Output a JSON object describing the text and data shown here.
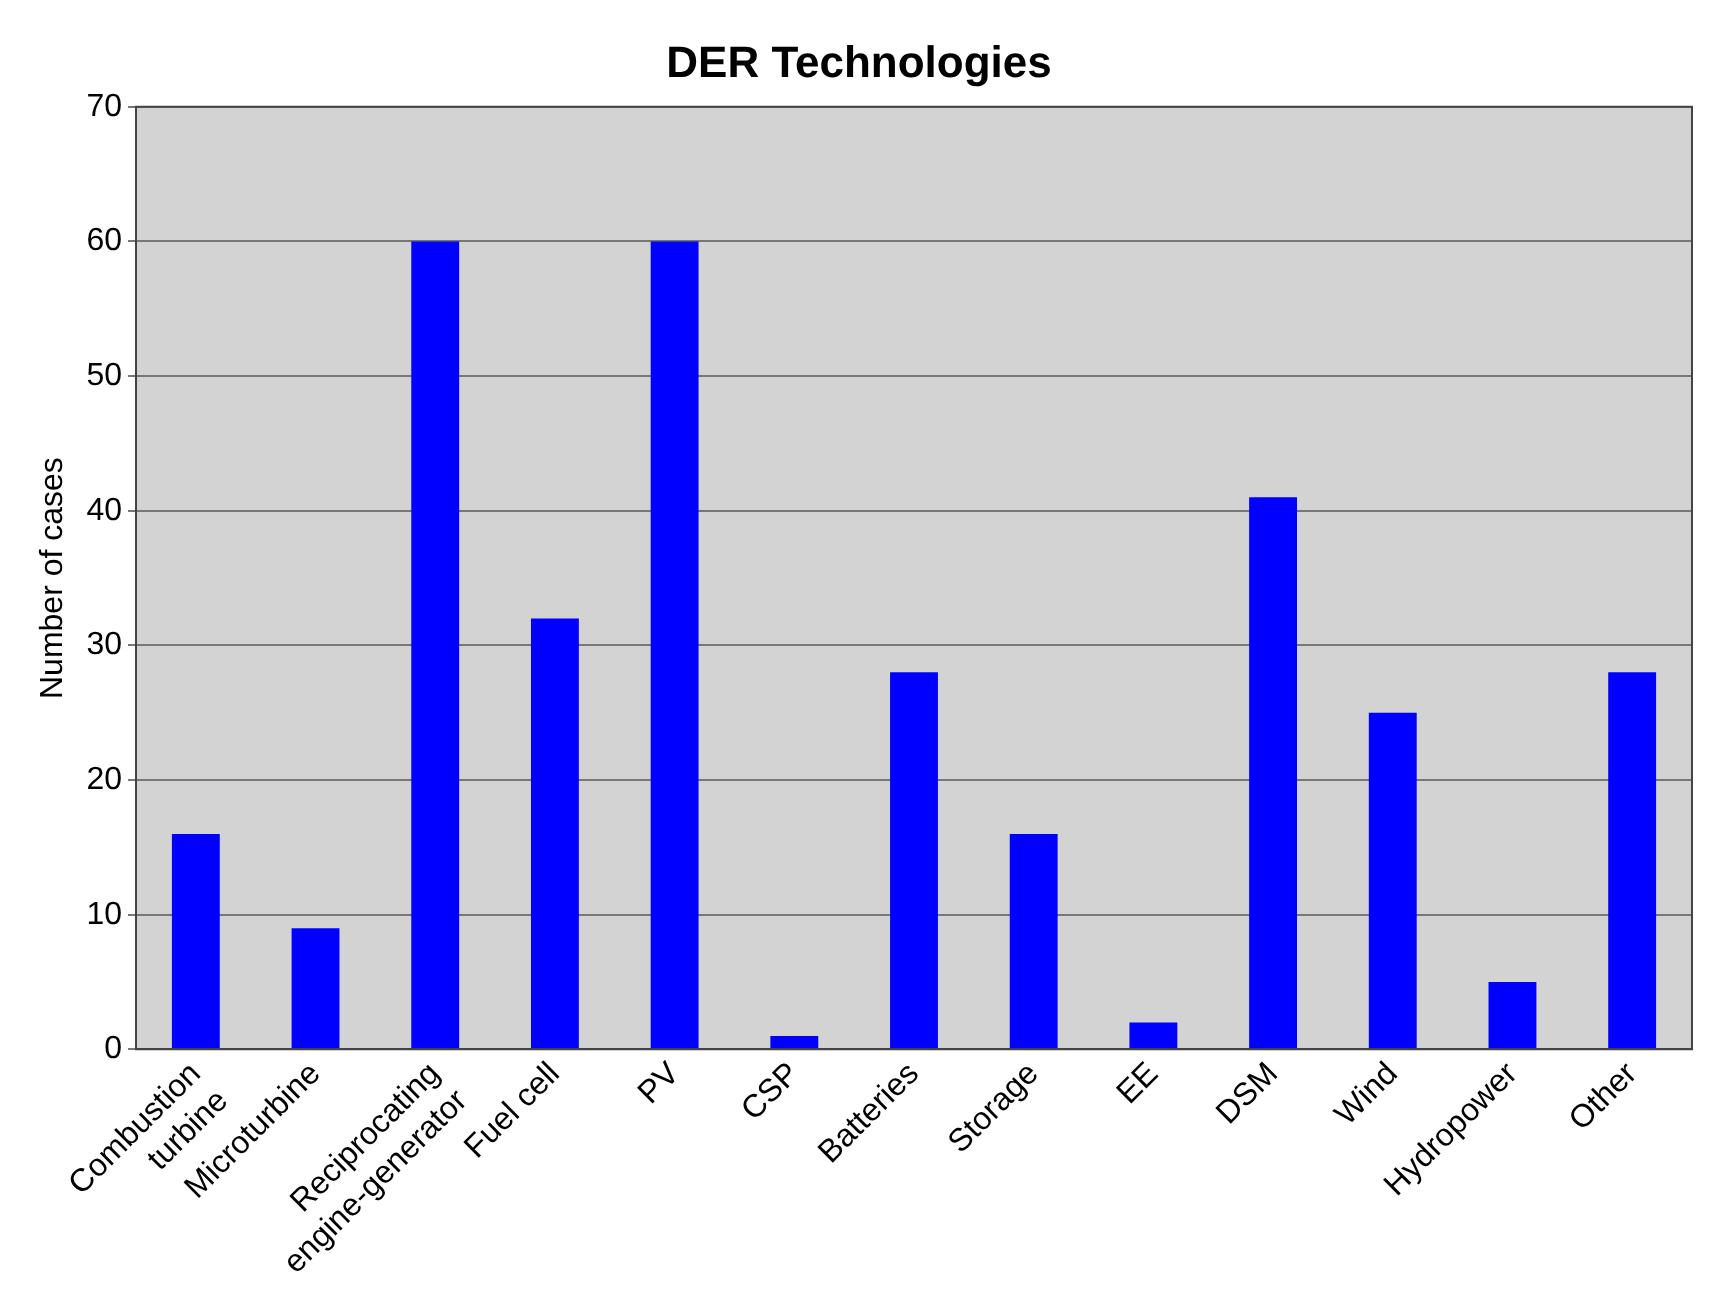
{
  "chart_data": {
    "type": "bar",
    "title": "DER Technologies",
    "ylabel": "Number of cases",
    "categories": [
      "Combustion turbine",
      "Microturbine",
      "Reciprocating engine-generator",
      "Fuel cell",
      "PV",
      "CSP",
      "Batteries",
      "Storage",
      "EE",
      "DSM",
      "Wind",
      "Hydropower",
      "Other"
    ],
    "values": [
      16,
      9,
      60,
      32,
      60,
      1,
      28,
      16,
      2,
      41,
      25,
      5,
      28
    ],
    "color": "#0000ff",
    "ylim": [
      0,
      70
    ],
    "yticks": [
      0,
      10,
      20,
      30,
      40,
      50,
      60,
      70
    ],
    "grid": "y",
    "legend": false
  }
}
